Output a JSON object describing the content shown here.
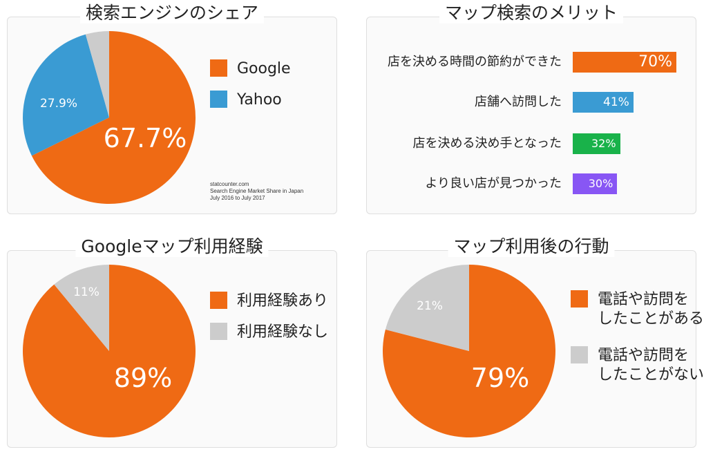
{
  "chart_data": [
    {
      "type": "pie",
      "title": "検索エンジンのシェア",
      "slices": [
        {
          "label": "Google",
          "value": 67.7,
          "display": "67.7%",
          "color": "#ef6a14"
        },
        {
          "label": "Yahoo",
          "value": 27.9,
          "display": "27.9%",
          "color": "#3a9bd3"
        },
        {
          "label": "",
          "value": 4.4,
          "display": "",
          "color": "#cccccc"
        }
      ],
      "legend": [
        "Google",
        "Yahoo"
      ],
      "legend_position": "right",
      "source": [
        "statcounter.com",
        "Search Engine Market Share in Japan",
        "July 2016 to July 2017"
      ]
    },
    {
      "type": "bar",
      "orientation": "horizontal",
      "title": "マップ検索のメリット",
      "categories": [
        "店を決める時間の節約ができた",
        "店舗へ訪問した",
        "店を決める決め手となった",
        "より良い店が見つかった"
      ],
      "values": [
        70,
        41,
        32,
        30
      ],
      "value_labels": [
        "70%",
        "41%",
        "32%",
        "30%"
      ],
      "colors": [
        "#ef6a14",
        "#3a9bd3",
        "#19b24a",
        "#8856f4"
      ]
    },
    {
      "type": "pie",
      "title": "Googleマップ利用経験",
      "slices": [
        {
          "label": "利用経験あり",
          "value": 89,
          "display": "89%",
          "color": "#ef6a14"
        },
        {
          "label": "利用経験なし",
          "value": 11,
          "display": "11%",
          "color": "#cccccc"
        }
      ],
      "legend": [
        "利用経験あり",
        "利用経験なし"
      ],
      "legend_position": "right"
    },
    {
      "type": "pie",
      "title": "マップ利用後の行動",
      "slices": [
        {
          "label": "電話や訪問をしたことがある",
          "value": 79,
          "display": "79%",
          "color": "#ef6a14"
        },
        {
          "label": "電話や訪問をしたことがない",
          "value": 21,
          "display": "21%",
          "color": "#cccccc"
        }
      ],
      "legend": [
        "電話や訪問を\nしたことがある",
        "電話や訪問を\nしたことがない"
      ],
      "legend_position": "right"
    }
  ]
}
